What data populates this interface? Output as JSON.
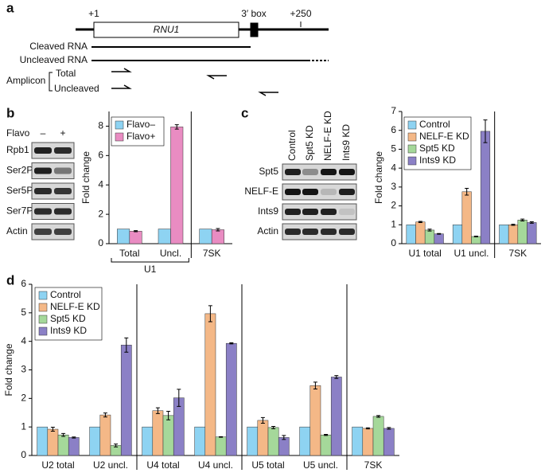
{
  "panel_labels": [
    "a",
    "b",
    "c",
    "d"
  ],
  "diagram": {
    "start": "+1",
    "box": "3′ box",
    "end": "+250",
    "gene": "RNU1",
    "cleaved": "Cleaved RNA",
    "uncleaved": "Uncleaved RNA",
    "amplicon": "Amplicon",
    "total": "Total",
    "uncleaved_primer": "Uncleaved"
  },
  "blot_b": {
    "treatment": "Flavo",
    "lanes": [
      "–",
      "+"
    ],
    "rows": [
      "Rpb1",
      "Ser2P",
      "Ser5P",
      "Ser7P",
      "Actin"
    ]
  },
  "blot_c": {
    "lanes": [
      "Control",
      "Spt5 KD",
      "NELF-E KD",
      "Ints9 KD"
    ],
    "rows": [
      "Spt5",
      "NELF-E",
      "Ints9",
      "Actin"
    ]
  },
  "chart_data": [
    {
      "type": "bar",
      "y_label": "Fold change",
      "categories": [
        "Total",
        "Uncl.",
        "7SK"
      ],
      "group_label": "U1",
      "ylim": [
        0,
        9
      ],
      "yticks": [
        0,
        2,
        4,
        6,
        8
      ],
      "series": [
        {
          "name": "Flavo–",
          "color": "#8ed3f2",
          "values": [
            1.0,
            1.0,
            1.0
          ]
        },
        {
          "name": "Flavo+",
          "color": "#e98cc2",
          "values": [
            0.85,
            7.95,
            0.95
          ],
          "errors": [
            0.04,
            0.15,
            0.08
          ]
        }
      ]
    },
    {
      "type": "bar",
      "y_label": "Fold change",
      "categories": [
        "U1 total",
        "U1 uncl.",
        "7SK"
      ],
      "ylim": [
        0,
        7
      ],
      "yticks": [
        0,
        1,
        2,
        3,
        4,
        5,
        6,
        7
      ],
      "series": [
        {
          "name": "Control",
          "color": "#8ed3f2",
          "values": [
            1.0,
            1.0,
            1.0
          ]
        },
        {
          "name": "NELF-E KD",
          "color": "#f4b887",
          "values": [
            1.15,
            2.75,
            1.0
          ],
          "errors": [
            0.03,
            0.18,
            0.03
          ]
        },
        {
          "name": "Spt5 KD",
          "color": "#a5d89a",
          "values": [
            0.72,
            0.38,
            1.25
          ],
          "errors": [
            0.05,
            0.02,
            0.05
          ]
        },
        {
          "name": "Ints9 KD",
          "color": "#8b80c6",
          "values": [
            0.52,
            5.95,
            1.12
          ],
          "errors": [
            0.02,
            0.6,
            0.04
          ]
        }
      ]
    },
    {
      "type": "bar",
      "y_label": "Fold change",
      "categories": [
        "U2 total",
        "U2 uncl.",
        "U4 total",
        "U4 uncl.",
        "U5 total",
        "U5 uncl.",
        "7SK"
      ],
      "ylim": [
        0,
        6
      ],
      "yticks": [
        0,
        1,
        2,
        3,
        4,
        5,
        6
      ],
      "series": [
        {
          "name": "Control",
          "color": "#8ed3f2",
          "values": [
            1.0,
            1.0,
            1.0,
            1.0,
            1.0,
            1.0,
            1.0
          ]
        },
        {
          "name": "NELF-E KD",
          "color": "#f4b887",
          "values": [
            0.92,
            1.42,
            1.57,
            4.97,
            1.23,
            2.45,
            0.95
          ],
          "errors": [
            0.07,
            0.07,
            0.1,
            0.28,
            0.1,
            0.12,
            0.02
          ]
        },
        {
          "name": "Spt5 KD",
          "color": "#a5d89a",
          "values": [
            0.72,
            0.35,
            1.4,
            0.65,
            0.98,
            0.72,
            1.37
          ],
          "errors": [
            0.05,
            0.05,
            0.15,
            0.01,
            0.04,
            0.02,
            0.03
          ]
        },
        {
          "name": "Ints9 KD",
          "color": "#8b80c6",
          "values": [
            0.63,
            3.87,
            2.02,
            3.93,
            0.63,
            2.75,
            0.95
          ],
          "errors": [
            0.02,
            0.25,
            0.3,
            0.02,
            0.07,
            0.05,
            0.03
          ]
        }
      ]
    }
  ]
}
